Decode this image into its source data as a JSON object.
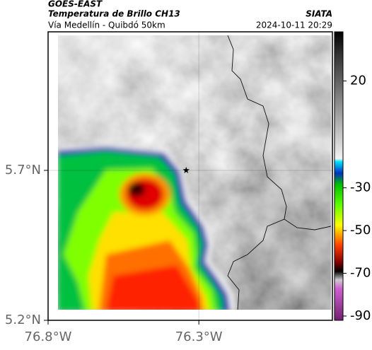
{
  "header": {
    "product": "GOES-EAST",
    "title": "Temperatura de Brillo CH13",
    "route": "Vía Medellín - Quibdó 50km",
    "source": "SIATA",
    "datetime": "2024-10-11 20:29"
  },
  "map": {
    "xlim": [
      -76.8,
      -75.857
    ],
    "ylim": [
      5.2,
      6.162
    ],
    "xticks": [
      {
        "value": -76.8,
        "label": "76.8°W"
      },
      {
        "value": -76.3,
        "label": "76.3°W"
      }
    ],
    "yticks": [
      {
        "value": 5.2,
        "label": "5.2°N"
      },
      {
        "value": 5.7,
        "label": "5.7°N"
      }
    ],
    "grid": true,
    "marker": {
      "lon": -76.342,
      "lat": 5.7
    }
  },
  "colorbar": {
    "lim": [
      -92,
      43
    ],
    "ticks": [
      20,
      -30,
      -50,
      -70,
      -90
    ]
  }
}
